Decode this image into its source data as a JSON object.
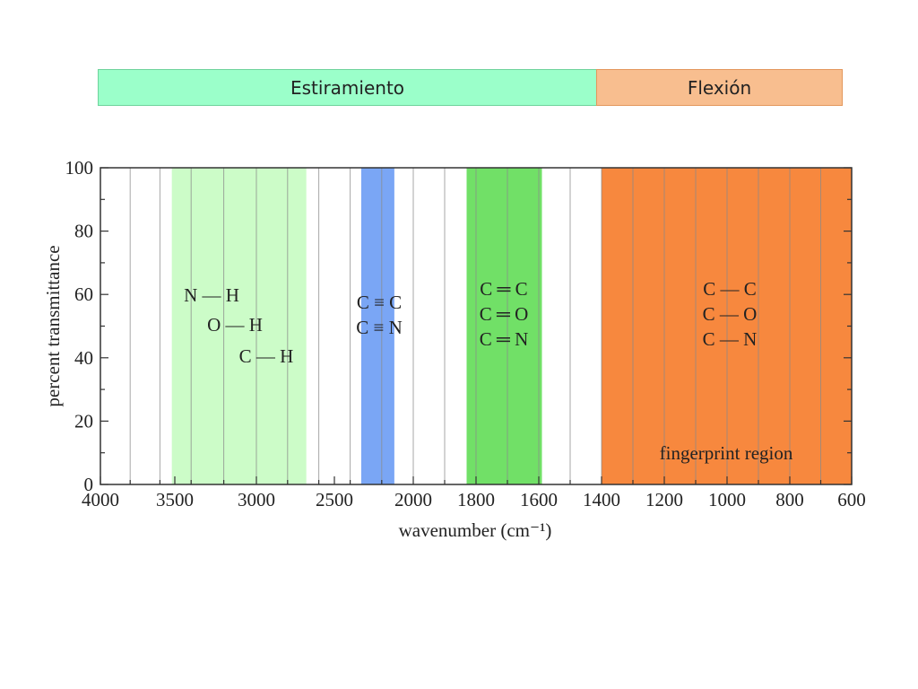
{
  "regions": {
    "stretching_label": "Estiramiento",
    "bending_label": "Flexión",
    "stretching_color": "#9bffca",
    "bending_color": "#f8be8f"
  },
  "chart_data": {
    "type": "band-chart",
    "title": "",
    "xlabel": "wavenumber (cm⁻¹)",
    "ylabel": "percent transmittance",
    "xlim": [
      4000,
      600
    ],
    "ylim": [
      0,
      100
    ],
    "x_ticks_labeled": [
      4000,
      3500,
      3000,
      2500,
      2000,
      1800,
      1600,
      1400,
      1200,
      1000,
      800,
      600
    ],
    "y_ticks_labeled": [
      0,
      20,
      40,
      60,
      80,
      100
    ],
    "grid": {
      "vertical_lines_at": [
        3800,
        3600,
        3400,
        3200,
        3000,
        2800,
        2600,
        2400,
        2200,
        2000,
        1900,
        1800,
        1700,
        1600,
        1500,
        1400,
        1300,
        1200,
        1100,
        1000,
        900,
        800,
        700
      ]
    },
    "bands": [
      {
        "name": "single-bonds-to-H",
        "x_from": 3520,
        "x_to": 2680,
        "color": "#ccfcc8",
        "labels": [
          "N — H",
          "O — H",
          "C — H"
        ]
      },
      {
        "name": "triple-bonds",
        "x_from": 2330,
        "x_to": 2120,
        "color": "#7aa6f5",
        "labels": [
          "C ≡ C",
          "C ≡ N"
        ]
      },
      {
        "name": "double-bonds",
        "x_from": 1830,
        "x_to": 1590,
        "color": "#71e067",
        "labels": [
          "C ═ C",
          "C ═ O",
          "C ═ N"
        ]
      },
      {
        "name": "fingerprint",
        "x_from": 1400,
        "x_to": 600,
        "color": "#f7883e",
        "labels": [
          "C — C",
          "C — O",
          "C — N"
        ],
        "caption": "fingerprint region"
      }
    ]
  }
}
